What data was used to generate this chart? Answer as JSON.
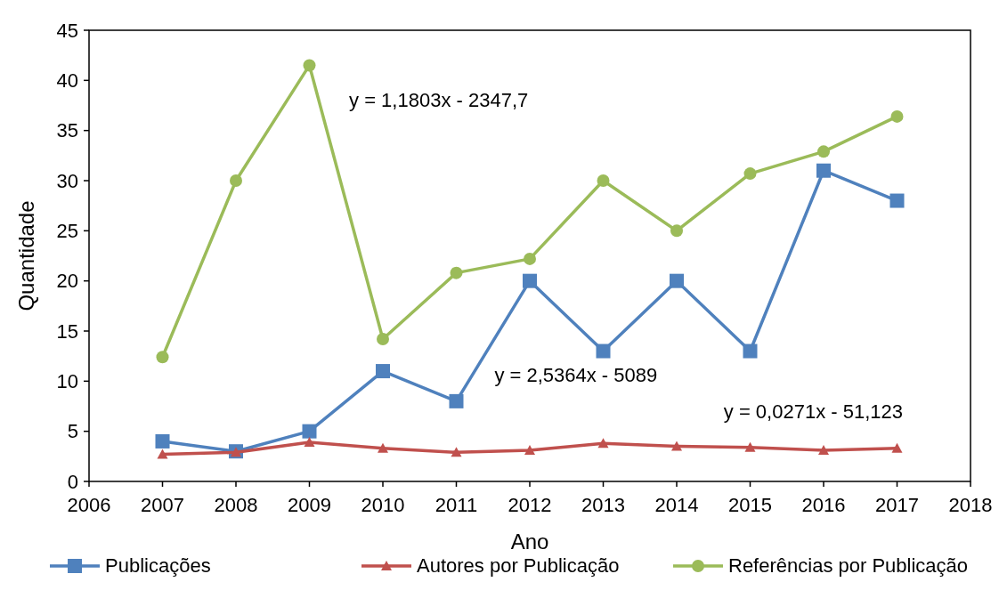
{
  "chart_data": {
    "type": "line",
    "xlabel": "Ano",
    "ylabel": "Quantidade",
    "x": [
      2007,
      2008,
      2009,
      2010,
      2011,
      2012,
      2013,
      2014,
      2015,
      2016,
      2017
    ],
    "xlim": [
      2006,
      2018
    ],
    "xticks": [
      2006,
      2007,
      2008,
      2009,
      2010,
      2011,
      2012,
      2013,
      2014,
      2015,
      2016,
      2017,
      2018
    ],
    "ylim": [
      0,
      45
    ],
    "yticks": [
      0,
      5,
      10,
      15,
      20,
      25,
      30,
      35,
      40,
      45
    ],
    "series": [
      {
        "name": "Publicações",
        "color": "#4f81bd",
        "marker": "square",
        "values": [
          4,
          3,
          5,
          11,
          8,
          20,
          13,
          20,
          13,
          31,
          28
        ]
      },
      {
        "name": "Autores por Publicação",
        "color": "#c0504d",
        "marker": "triangle",
        "values": [
          2.7,
          2.9,
          3.9,
          3.3,
          2.9,
          3.1,
          3.8,
          3.5,
          3.4,
          3.1,
          3.3
        ]
      },
      {
        "name": "Referências por Publicação",
        "color": "#9bbb59",
        "marker": "circle",
        "values": [
          12.4,
          30,
          41.5,
          14.2,
          20.8,
          22.2,
          30,
          25,
          30.7,
          32.9,
          36.4
        ]
      }
    ],
    "annotations": [
      "y = 1,1803x - 2347,7",
      "y = 2,5364x - 5089",
      "y = 0,0271x - 51,123"
    ],
    "grid": false,
    "legend": "bottom",
    "line_style": "solid"
  }
}
